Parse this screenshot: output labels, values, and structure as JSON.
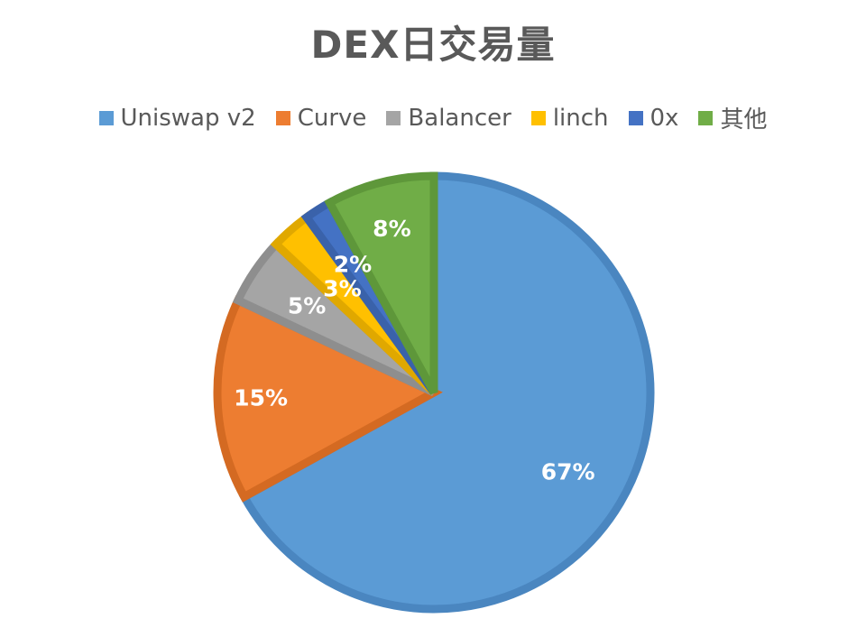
{
  "chart_data": {
    "type": "pie",
    "title": "DEX日交易量",
    "legend_position": "top",
    "slices": [
      {
        "name": "Uniswap v2",
        "value": 67,
        "label": "67%",
        "color": "#5B9BD5",
        "edge": "#4A86C0"
      },
      {
        "name": "Curve",
        "value": 15,
        "label": "15%",
        "color": "#ED7D31",
        "edge": "#D46A22"
      },
      {
        "name": "Balancer",
        "value": 5,
        "label": "5%",
        "color": "#A5A5A5",
        "edge": "#8E8E8E"
      },
      {
        "name": "linch",
        "value": 3,
        "label": "3%",
        "color": "#FFC000",
        "edge": "#E0A800"
      },
      {
        "name": "0x",
        "value": 2,
        "label": "2%",
        "color": "#4472C4",
        "edge": "#3A62AA"
      },
      {
        "name": "其他",
        "value": 8,
        "label": "8%",
        "color": "#70AD47",
        "edge": "#5E973A"
      }
    ]
  }
}
